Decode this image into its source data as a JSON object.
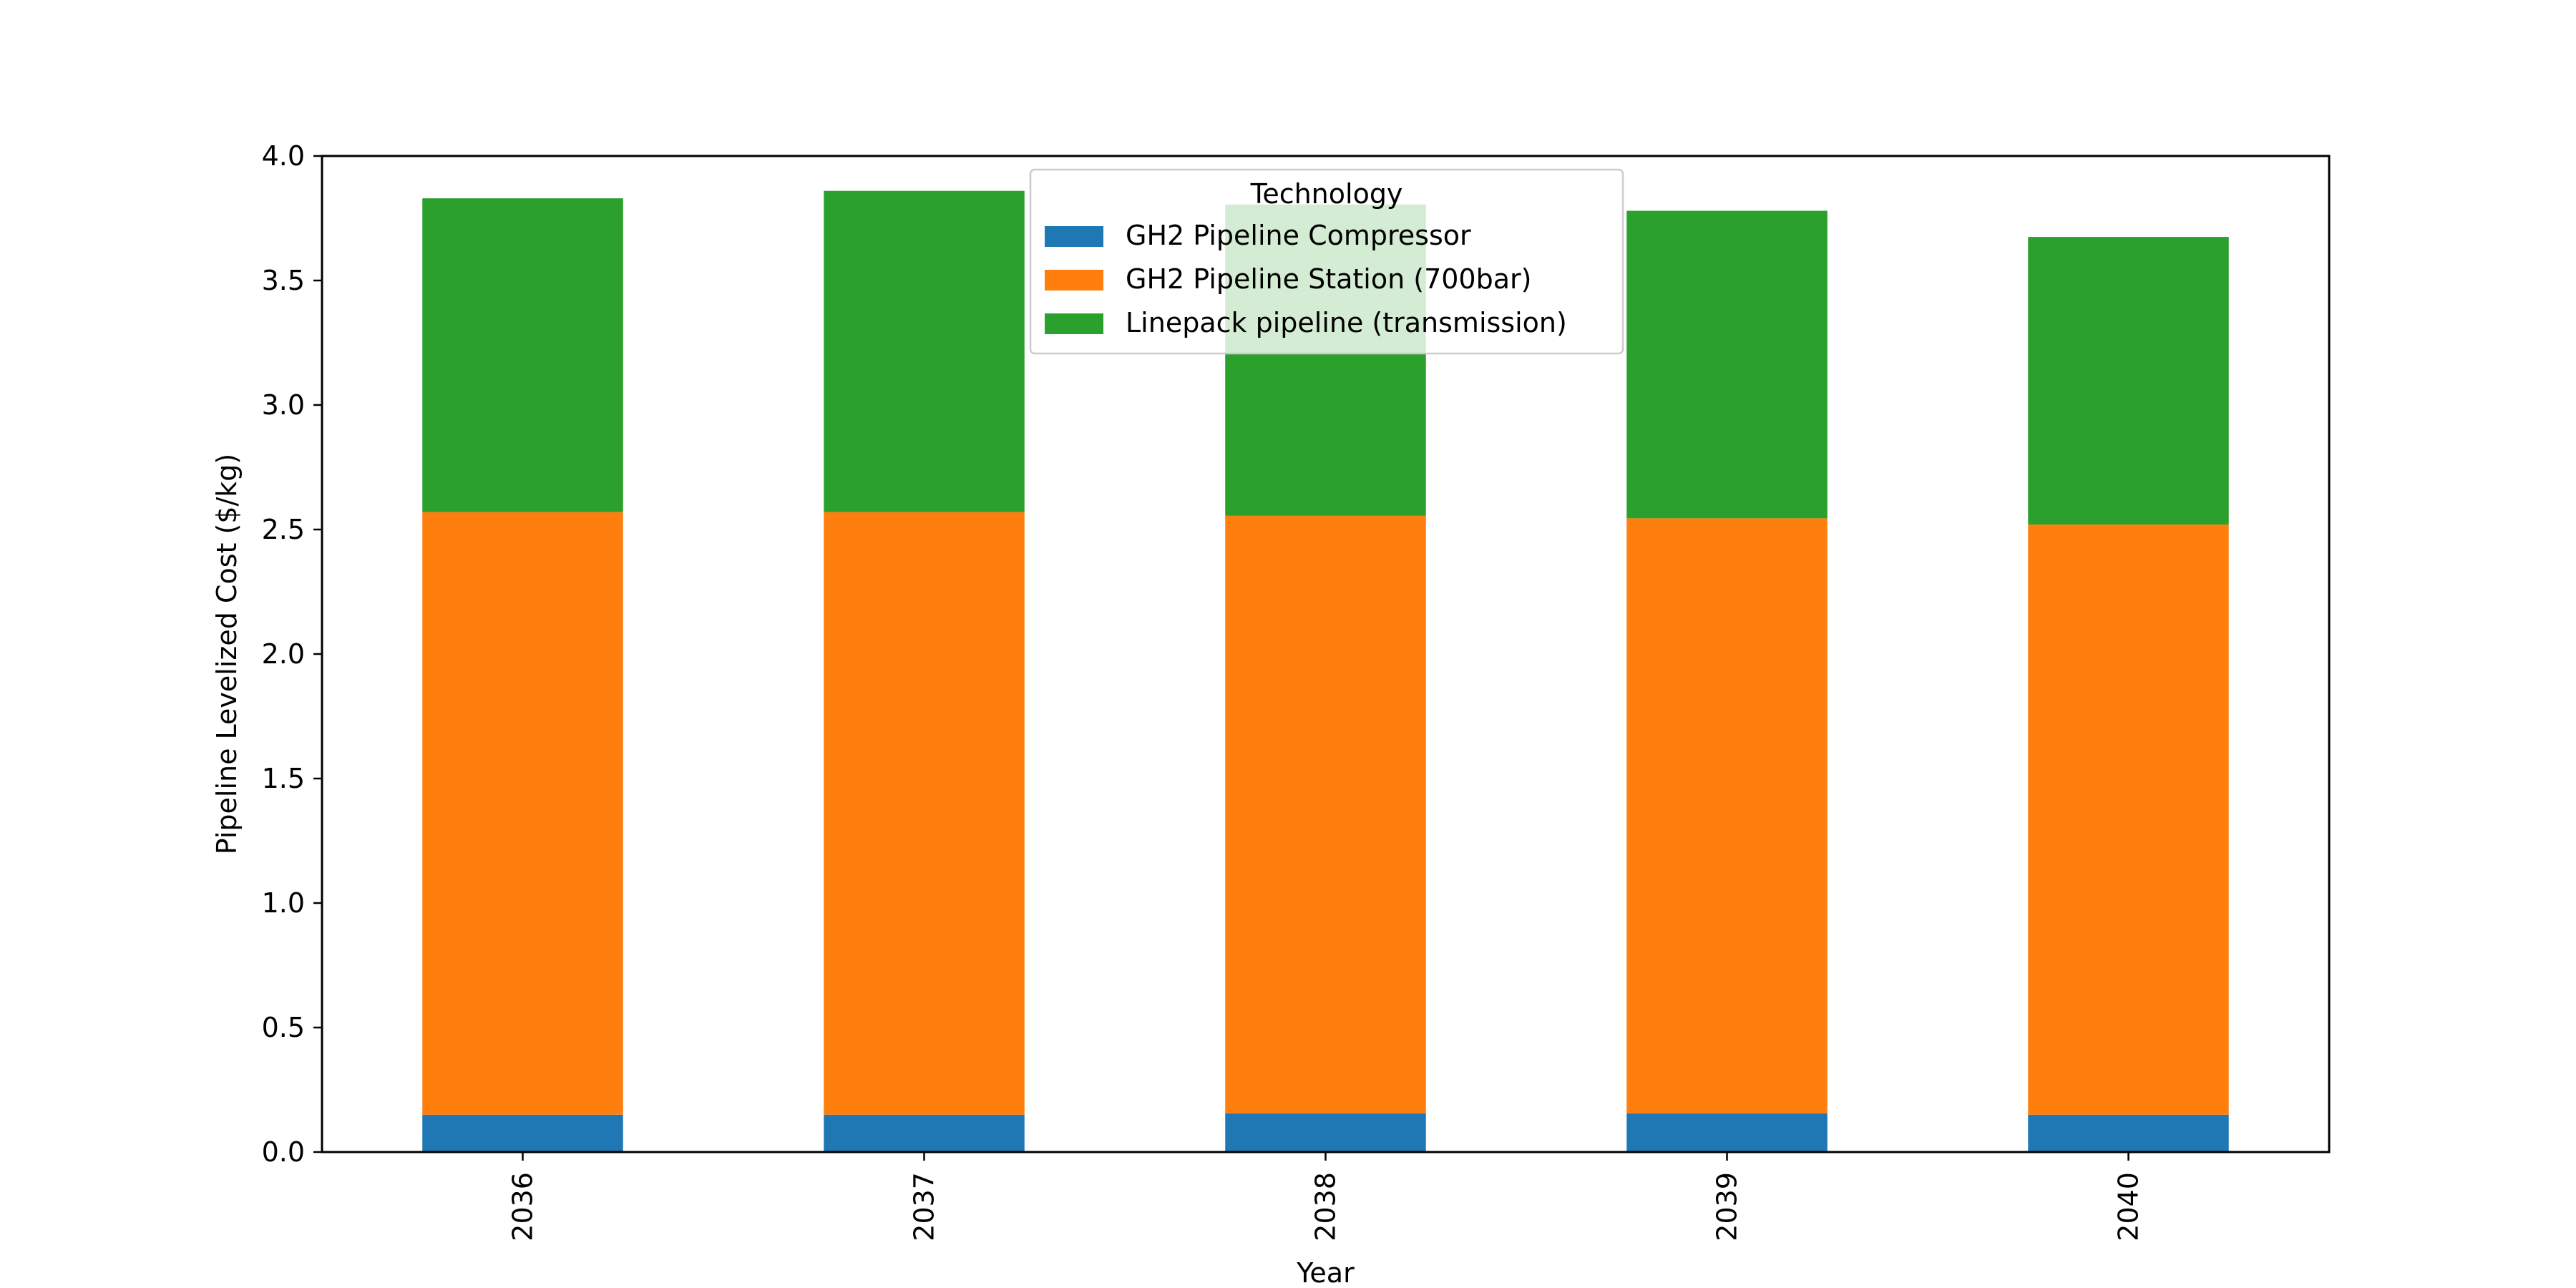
{
  "chart_data": {
    "type": "bar",
    "stacked": true,
    "title": "",
    "xlabel": "Year",
    "ylabel": "Pipeline Levelized Cost ($/kg)",
    "categories": [
      "2036",
      "2037",
      "2038",
      "2039",
      "2040"
    ],
    "ylim": [
      0,
      4.0
    ],
    "yticks": [
      0.0,
      0.5,
      1.0,
      1.5,
      2.0,
      2.5,
      3.0,
      3.5,
      4.0
    ],
    "ytick_labels": [
      "0.0",
      "0.5",
      "1.0",
      "1.5",
      "2.0",
      "2.5",
      "3.0",
      "3.5",
      "4.0"
    ],
    "grid": false,
    "legend": {
      "title": "Technology",
      "placement": "top-center"
    },
    "series": [
      {
        "name": "GH2 Pipeline Compressor",
        "color": "#1f77b4",
        "values": [
          0.15,
          0.15,
          0.155,
          0.155,
          0.15
        ]
      },
      {
        "name": "GH2 Pipeline Station (700bar)",
        "color": "#ff7f0e",
        "values": [
          2.42,
          2.42,
          2.4,
          2.39,
          2.37
        ]
      },
      {
        "name": "Linepack pipeline (transmission)",
        "color": "#2ca02c",
        "values": [
          1.26,
          1.29,
          1.25,
          1.235,
          1.155
        ]
      }
    ]
  }
}
